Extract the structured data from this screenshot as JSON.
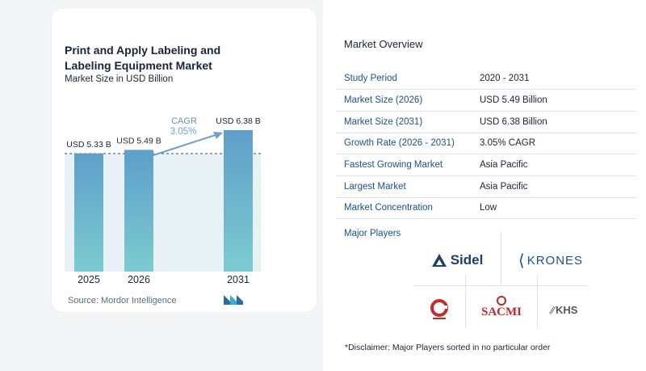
{
  "chart": {
    "title": "Print and Apply Labeling and Labeling Equipment Market",
    "subtitle": "Market Size in USD Billion",
    "source": "Source:  Mordor Intelligence",
    "cagr_label": "CAGR",
    "cagr_value": "3.05%"
  },
  "chart_data": {
    "type": "bar",
    "categories": [
      "2025",
      "2026",
      "2031"
    ],
    "values": [
      5.33,
      5.49,
      6.38
    ],
    "data_labels": [
      "USD 5.33 B",
      "USD 5.49 B",
      "USD 6.38 B"
    ],
    "title": "Print and Apply Labeling and Labeling Equipment Market",
    "subtitle": "Market Size in USD Billion",
    "ylim": [
      0,
      6.38
    ],
    "grid": false,
    "colors": [
      "#6aaecb",
      "#6aaecb",
      "#6aaecb"
    ]
  },
  "overview": {
    "title": "Market Overview",
    "rows": [
      {
        "key": "Study Period",
        "value": "2020 - 2031"
      },
      {
        "key": "Market Size (2026)",
        "value": "USD 5.49 Billion"
      },
      {
        "key": "Market Size (2031)",
        "value": "USD 6.38 Billion"
      },
      {
        "key": "Growth Rate (2026 - 2031)",
        "value": "3.05% CAGR"
      },
      {
        "key": "Fastest Growing Market",
        "value": "Asia Pacific"
      },
      {
        "key": "Largest Market",
        "value": "Asia Pacific"
      },
      {
        "key": "Market Concentration",
        "value": "Low"
      }
    ]
  },
  "players": {
    "title": "Major Players",
    "logos": {
      "sidel": "Sidel",
      "krones": "KRONES",
      "sacmi": "SACMI",
      "khs": "KHS"
    },
    "disclaimer": "*Disclaimer: Major Players sorted in no particular order"
  }
}
